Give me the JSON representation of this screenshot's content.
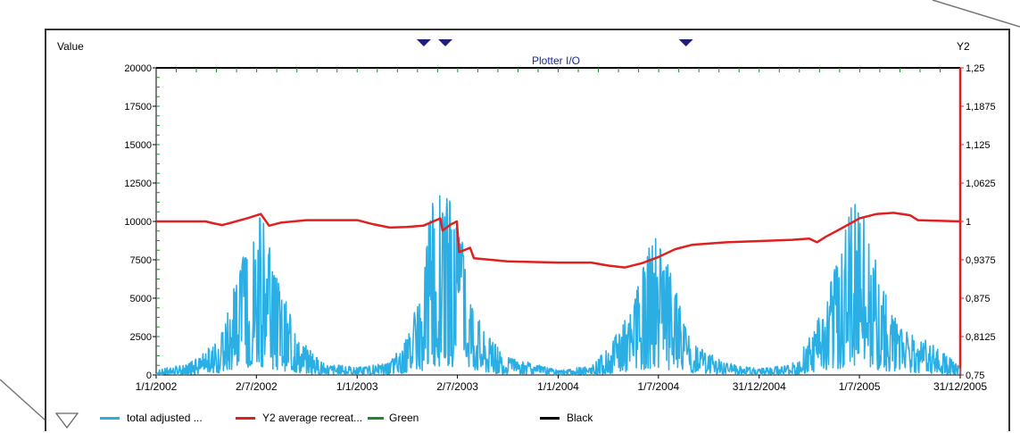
{
  "chart_data": {
    "type": "line",
    "title": "Plotter I/O",
    "ylabel": "Value",
    "y2label": "Y2",
    "ylim": [
      0,
      20000
    ],
    "y2lim": [
      0.75,
      1.25
    ],
    "yticks": [
      "0",
      "2500",
      "5000",
      "7500",
      "10000",
      "12500",
      "15000",
      "17500",
      "20000"
    ],
    "y2ticks": [
      "0,75",
      "0,8125",
      "0,875",
      "0,9375",
      "1",
      "1,0625",
      "1,125",
      "1,1875",
      "1,25"
    ],
    "xticks": [
      "1/1/2002",
      "2/7/2002",
      "1/1/2003",
      "2/7/2003",
      "1/1/2004",
      "1/7/2004",
      "31/12/2004",
      "1/7/2005",
      "31/12/2005"
    ],
    "xrange": [
      "1/1/2002",
      "31/12/2005"
    ],
    "grid": false,
    "legend_position": "bottom",
    "markers_top": [
      "2/5/2003",
      "10/6/2003",
      "20/8/2004"
    ],
    "series": [
      {
        "name": "total adjusted ...",
        "axis": "left",
        "color": "#2aaee3",
        "envelope": [
          {
            "x": "1/1/2002",
            "y": 300
          },
          {
            "x": "1/3/2002",
            "y": 800
          },
          {
            "x": "1/4/2002",
            "y": 1500
          },
          {
            "x": "1/5/2002",
            "y": 3000
          },
          {
            "x": "1/6/2002",
            "y": 7000
          },
          {
            "x": "20/6/2002",
            "y": 9000
          },
          {
            "x": "5/7/2002",
            "y": 11800
          },
          {
            "x": "20/7/2002",
            "y": 9000
          },
          {
            "x": "15/8/2002",
            "y": 6000
          },
          {
            "x": "15/9/2002",
            "y": 2500
          },
          {
            "x": "1/11/2002",
            "y": 800
          },
          {
            "x": "1/1/2003",
            "y": 500
          },
          {
            "x": "1/3/2003",
            "y": 800
          },
          {
            "x": "1/4/2003",
            "y": 2500
          },
          {
            "x": "1/5/2003",
            "y": 6000
          },
          {
            "x": "15/5/2003",
            "y": 11700
          },
          {
            "x": "15/6/2003",
            "y": 11700
          },
          {
            "x": "10/7/2003",
            "y": 9000
          },
          {
            "x": "15/8/2003",
            "y": 3000
          },
          {
            "x": "1/10/2003",
            "y": 1200
          },
          {
            "x": "1/1/2004",
            "y": 300
          },
          {
            "x": "1/3/2004",
            "y": 600
          },
          {
            "x": "1/4/2004",
            "y": 1800
          },
          {
            "x": "15/5/2004",
            "y": 4500
          },
          {
            "x": "15/6/2004",
            "y": 8500
          },
          {
            "x": "25/6/2004",
            "y": 9400
          },
          {
            "x": "20/7/2004",
            "y": 7000
          },
          {
            "x": "1/9/2004",
            "y": 2000
          },
          {
            "x": "1/11/2004",
            "y": 800
          },
          {
            "x": "31/12/2004",
            "y": 400
          },
          {
            "x": "1/3/2005",
            "y": 800
          },
          {
            "x": "1/4/2005",
            "y": 2500
          },
          {
            "x": "1/5/2005",
            "y": 5000
          },
          {
            "x": "1/6/2005",
            "y": 9000
          },
          {
            "x": "25/6/2005",
            "y": 12700
          },
          {
            "x": "15/7/2005",
            "y": 9500
          },
          {
            "x": "15/8/2005",
            "y": 5500
          },
          {
            "x": "15/9/2005",
            "y": 3000
          },
          {
            "x": "15/10/2005",
            "y": 2500
          },
          {
            "x": "15/11/2005",
            "y": 2000
          },
          {
            "x": "31/12/2005",
            "y": 500
          }
        ]
      },
      {
        "name": "Y2 average recreat...",
        "axis": "right",
        "color": "#e02020",
        "points": [
          {
            "x": "1/1/2002",
            "y": 1.0
          },
          {
            "x": "1/4/2002",
            "y": 1.0
          },
          {
            "x": "15/4/2002",
            "y": 0.997
          },
          {
            "x": "1/5/2002",
            "y": 0.994
          },
          {
            "x": "15/6/2002",
            "y": 1.005
          },
          {
            "x": "10/7/2002",
            "y": 1.012
          },
          {
            "x": "25/7/2002",
            "y": 0.993
          },
          {
            "x": "15/8/2002",
            "y": 0.998
          },
          {
            "x": "1/10/2002",
            "y": 1.002
          },
          {
            "x": "1/1/2003",
            "y": 1.002
          },
          {
            "x": "1/2/2003",
            "y": 0.995
          },
          {
            "x": "1/3/2003",
            "y": 0.99
          },
          {
            "x": "1/4/2003",
            "y": 0.991
          },
          {
            "x": "1/5/2003",
            "y": 0.993
          },
          {
            "x": "1/6/2003",
            "y": 1.005
          },
          {
            "x": "5/6/2003",
            "y": 0.985
          },
          {
            "x": "20/6/2003",
            "y": 0.995
          },
          {
            "x": "1/7/2003",
            "y": 1.0
          },
          {
            "x": "5/7/2003",
            "y": 0.95
          },
          {
            "x": "25/7/2003",
            "y": 0.957
          },
          {
            "x": "1/8/2003",
            "y": 0.94
          },
          {
            "x": "1/10/2003",
            "y": 0.935
          },
          {
            "x": "1/1/2004",
            "y": 0.933
          },
          {
            "x": "1/3/2004",
            "y": 0.933
          },
          {
            "x": "1/4/2004",
            "y": 0.928
          },
          {
            "x": "1/5/2004",
            "y": 0.925
          },
          {
            "x": "1/6/2004",
            "y": 0.932
          },
          {
            "x": "1/7/2004",
            "y": 0.942
          },
          {
            "x": "1/8/2004",
            "y": 0.955
          },
          {
            "x": "1/9/2004",
            "y": 0.962
          },
          {
            "x": "1/11/2004",
            "y": 0.966
          },
          {
            "x": "1/1/2005",
            "y": 0.968
          },
          {
            "x": "1/3/2005",
            "y": 0.97
          },
          {
            "x": "1/4/2005",
            "y": 0.972
          },
          {
            "x": "15/4/2005",
            "y": 0.966
          },
          {
            "x": "1/5/2005",
            "y": 0.975
          },
          {
            "x": "1/6/2005",
            "y": 0.99
          },
          {
            "x": "1/7/2005",
            "y": 1.005
          },
          {
            "x": "1/8/2005",
            "y": 1.012
          },
          {
            "x": "1/9/2005",
            "y": 1.014
          },
          {
            "x": "1/10/2005",
            "y": 1.01
          },
          {
            "x": "15/10/2005",
            "y": 1.002
          },
          {
            "x": "31/12/2005",
            "y": 1.0
          }
        ]
      },
      {
        "name": "Green",
        "axis": "left",
        "color": "#1a8a2a",
        "points": []
      },
      {
        "name": "Black",
        "axis": "left",
        "color": "#000000",
        "points": []
      }
    ]
  }
}
